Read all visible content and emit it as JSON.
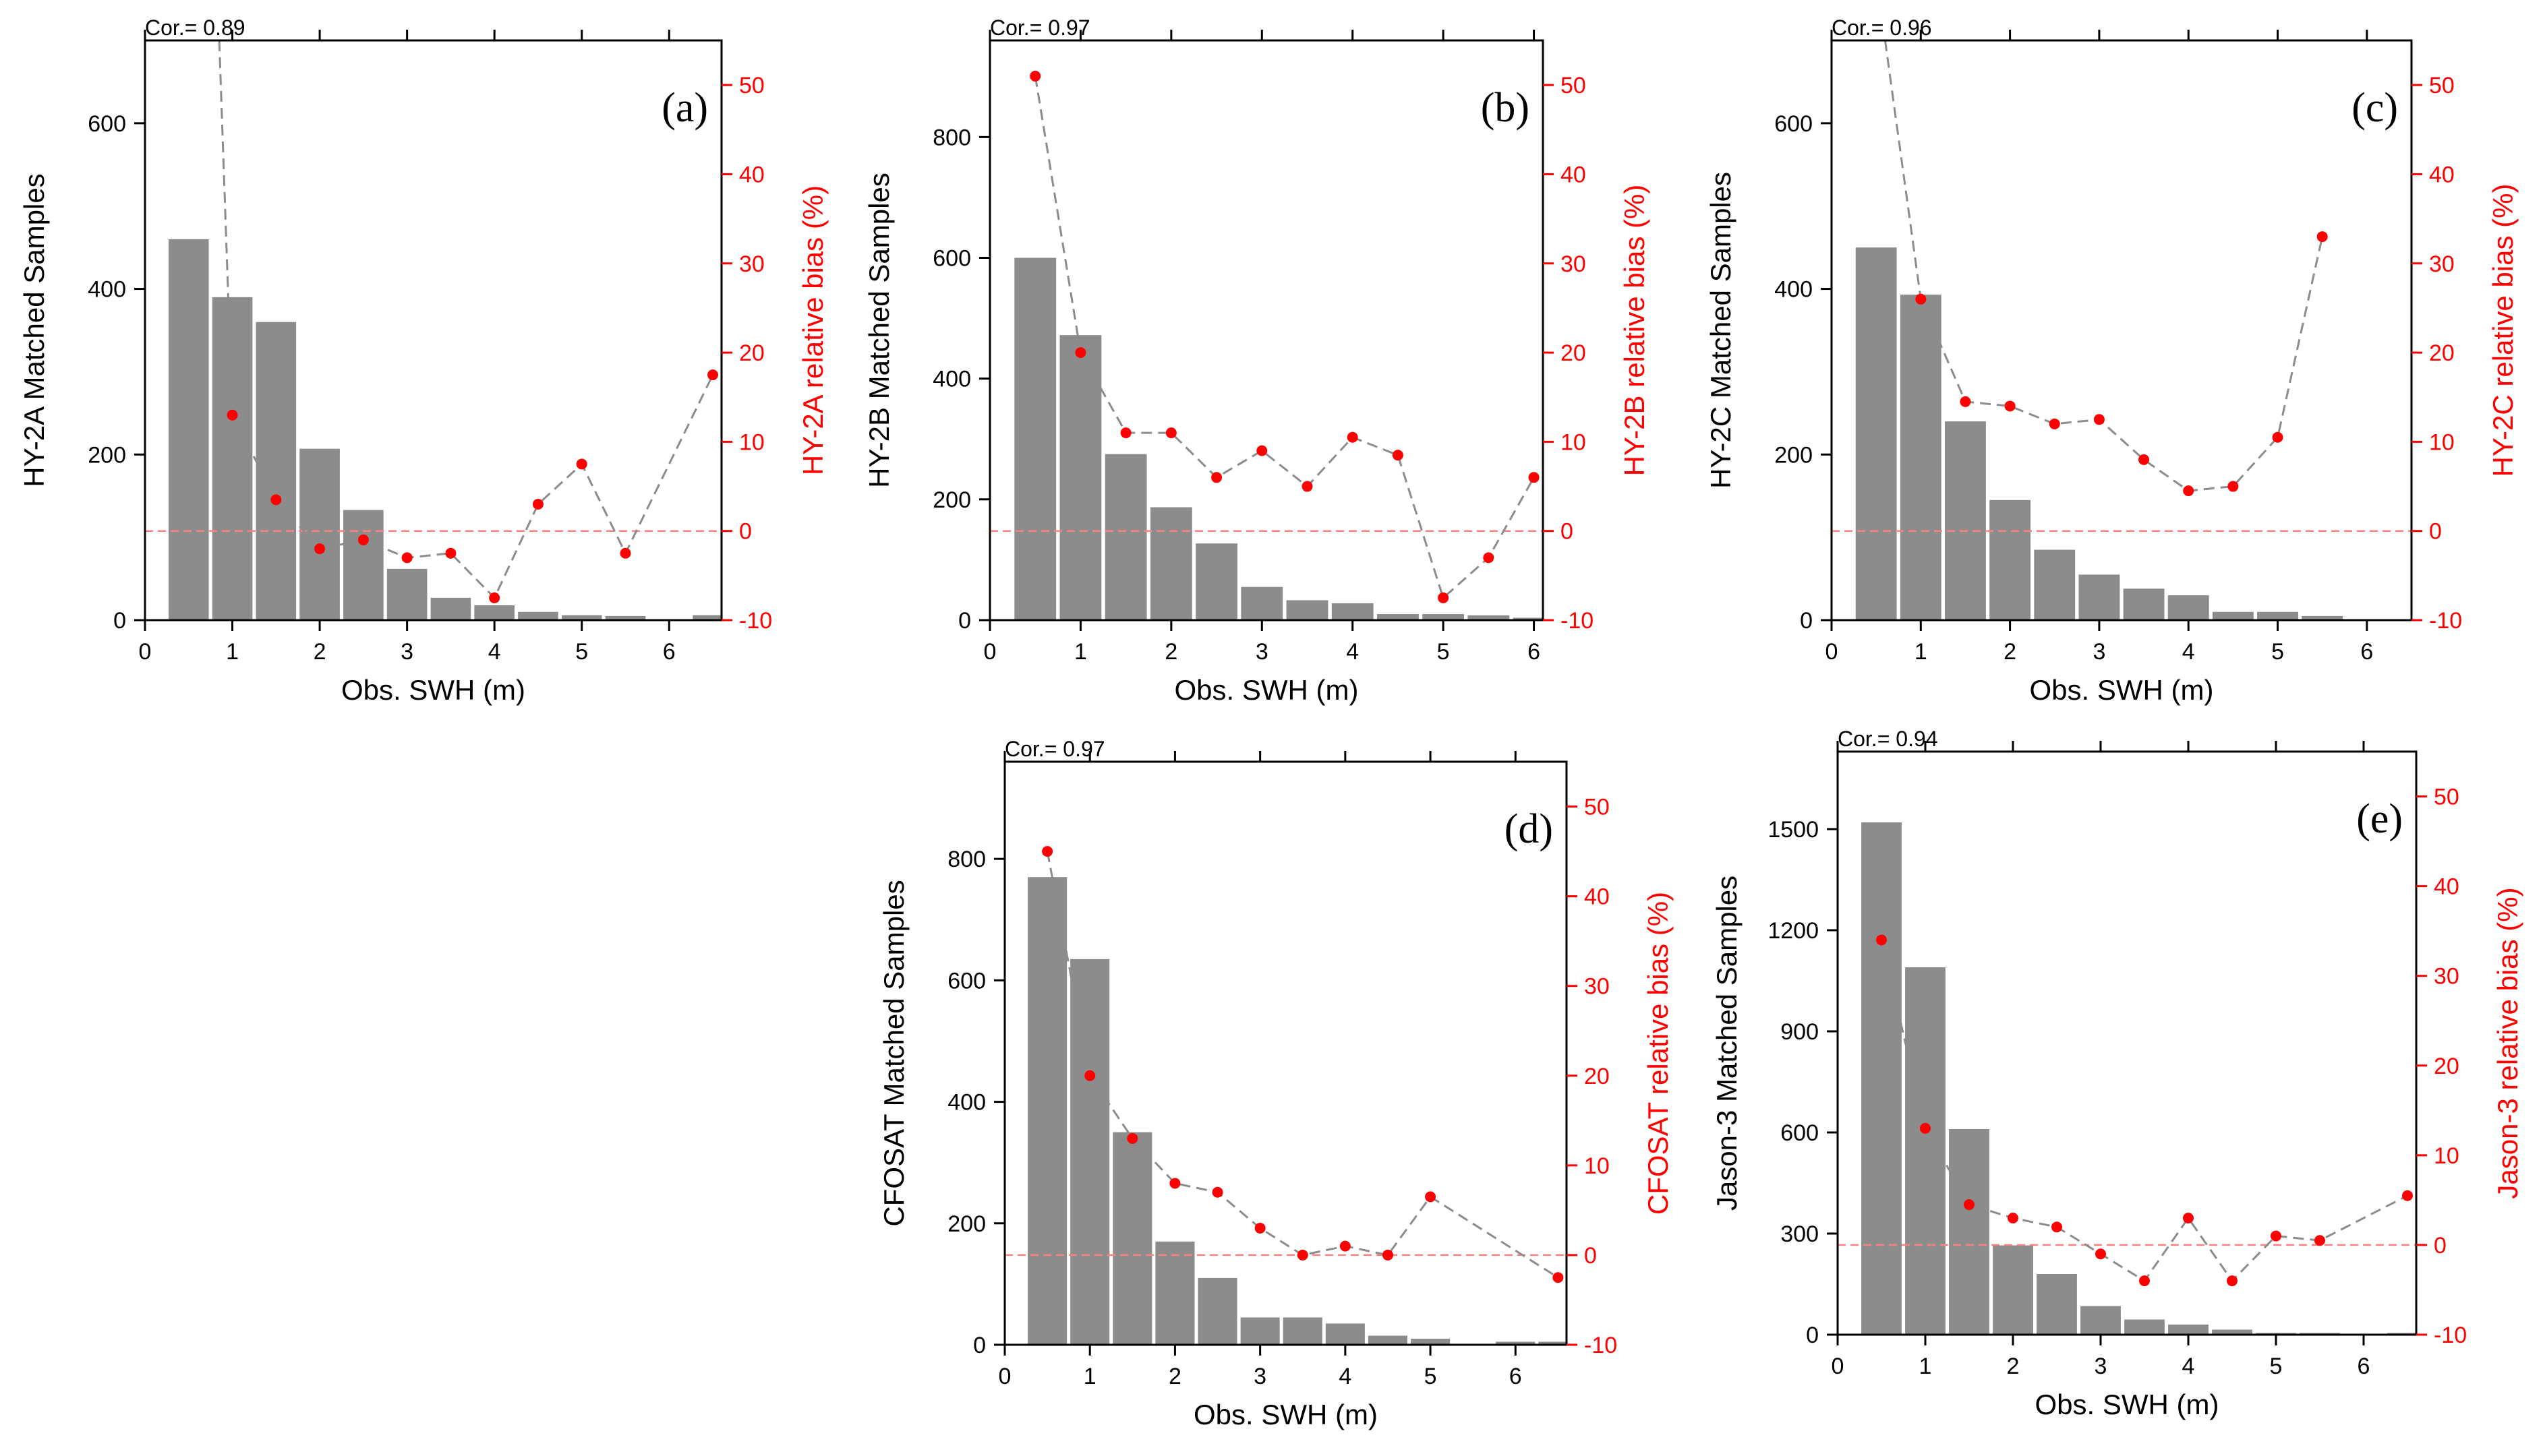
{
  "colors": {
    "bar": "#8c8c8c",
    "bias": "#ff0000",
    "bias_line": "#8c8c8c",
    "zero_line": "#ff8080",
    "axis": "#000000"
  },
  "chart_data": [
    {
      "id": "a",
      "type": "bar+line",
      "panel_label": "(a)",
      "correlation": "Cor.= 0.89",
      "xlabel": "Obs. SWH (m)",
      "ylabel": "HY-2A Matched Samples",
      "ylabel2": "HY-2A relative bias (%)",
      "xlim": [
        0,
        6.6
      ],
      "ylim": [
        0,
        700
      ],
      "y2lim": [
        -10,
        55
      ],
      "x_ticks": [
        "0",
        "1",
        "2",
        "3",
        "4",
        "5",
        "6"
      ],
      "y_ticks": [
        "0",
        "200",
        "400",
        "600"
      ],
      "y2_ticks": [
        "-10",
        "0",
        "10",
        "20",
        "30",
        "40",
        "50"
      ],
      "bin_centers": [
        0.5,
        1,
        1.5,
        2,
        2.5,
        3,
        3.5,
        4,
        4.5,
        5,
        5.5,
        6,
        6.5
      ],
      "counts": [
        460,
        390,
        360,
        207,
        133,
        62,
        27,
        18,
        10,
        6,
        5,
        0,
        6
      ],
      "bias": [
        null,
        13,
        3.5,
        -2,
        -1,
        -3,
        -2.5,
        -7.5,
        3,
        7.5,
        -2.5,
        null,
        17.5
      ],
      "bias_line_start": [
        0.85,
        55
      ]
    },
    {
      "id": "b",
      "type": "bar+line",
      "panel_label": "(b)",
      "correlation": "Cor.= 0.97",
      "xlabel": "Obs. SWH (m)",
      "ylabel": "HY-2B Matched Samples",
      "ylabel2": "HY-2B relative bias (%)",
      "xlim": [
        0,
        6.1
      ],
      "ylim": [
        0,
        960
      ],
      "y2lim": [
        -10,
        55
      ],
      "x_ticks": [
        "0",
        "1",
        "2",
        "3",
        "4",
        "5",
        "6"
      ],
      "y_ticks": [
        "0",
        "200",
        "400",
        "600",
        "800"
      ],
      "y2_ticks": [
        "-10",
        "0",
        "10",
        "20",
        "30",
        "40",
        "50"
      ],
      "bin_centers": [
        0.5,
        1,
        1.5,
        2,
        2.5,
        3,
        3.5,
        4,
        4.5,
        5,
        5.5,
        6
      ],
      "counts": [
        600,
        472,
        275,
        187,
        127,
        55,
        33,
        28,
        10,
        10,
        8,
        4
      ],
      "bias": [
        51,
        20,
        11,
        11,
        6,
        9,
        5,
        10.5,
        8.5,
        -7.5,
        -3,
        6
      ],
      "bias_line_start": null
    },
    {
      "id": "c",
      "type": "bar+line",
      "panel_label": "(c)",
      "correlation": "Cor.= 0.96",
      "xlabel": "Obs. SWH (m)",
      "ylabel": "HY-2C Matched Samples",
      "ylabel2": "HY-2C relative bias (%)",
      "xlim": [
        0,
        6.5
      ],
      "ylim": [
        0,
        700
      ],
      "y2lim": [
        -10,
        55
      ],
      "x_ticks": [
        "0",
        "1",
        "2",
        "3",
        "4",
        "5",
        "6"
      ],
      "y_ticks": [
        "0",
        "200",
        "400",
        "600"
      ],
      "y2_ticks": [
        "-10",
        "0",
        "10",
        "20",
        "30",
        "40",
        "50"
      ],
      "bin_centers": [
        0.5,
        1,
        1.5,
        2,
        2.5,
        3,
        3.5,
        4,
        4.5,
        5,
        5.5
      ],
      "counts": [
        450,
        393,
        240,
        145,
        85,
        55,
        38,
        30,
        10,
        10,
        5
      ],
      "bias": [
        null,
        26,
        14.5,
        14,
        12,
        12.5,
        8,
        4.5,
        5,
        10.5,
        33
      ],
      "bias_line_start": [
        0.6,
        55
      ]
    },
    {
      "id": "d",
      "type": "bar+line",
      "panel_label": "(d)",
      "correlation": "Cor.= 0.97",
      "xlabel": "Obs. SWH (m)",
      "ylabel": "CFOSAT Matched Samples",
      "ylabel2": "CFOSAT relative bias (%)",
      "xlim": [
        0,
        6.6
      ],
      "ylim": [
        0,
        960
      ],
      "y2lim": [
        -10,
        55
      ],
      "x_ticks": [
        "0",
        "1",
        "2",
        "3",
        "4",
        "5",
        "6"
      ],
      "y_ticks": [
        "0",
        "200",
        "400",
        "600",
        "800"
      ],
      "y2_ticks": [
        "-10",
        "0",
        "10",
        "20",
        "30",
        "40",
        "50"
      ],
      "bin_centers": [
        0.5,
        1,
        1.5,
        2,
        2.5,
        3,
        3.5,
        4,
        4.5,
        5,
        5.5,
        6,
        6.5
      ],
      "counts": [
        770,
        635,
        350,
        170,
        110,
        45,
        45,
        35,
        15,
        10,
        0,
        5,
        5
      ],
      "bias": [
        45,
        20,
        13,
        8,
        7,
        3,
        0,
        1,
        0,
        6.5,
        null,
        null,
        -2.5
      ],
      "bias_line_start": null
    },
    {
      "id": "e",
      "type": "bar+line",
      "panel_label": "(e)",
      "correlation": "Cor.= 0.94",
      "xlabel": "Obs. SWH (m)",
      "ylabel": "Jason-3 Matched Samples",
      "ylabel2": "Jason-3 relative bias (%)",
      "xlim": [
        0,
        6.6
      ],
      "ylim": [
        0,
        1730
      ],
      "y2lim": [
        -10,
        55
      ],
      "x_ticks": [
        "0",
        "1",
        "2",
        "3",
        "4",
        "5",
        "6"
      ],
      "y_ticks": [
        "0",
        "300",
        "600",
        "900",
        "1200",
        "1500"
      ],
      "y2_ticks": [
        "-10",
        "0",
        "10",
        "20",
        "30",
        "40",
        "50"
      ],
      "bin_centers": [
        0.5,
        1,
        1.5,
        2,
        2.5,
        3,
        3.5,
        4,
        4.5,
        5,
        5.5,
        6,
        6.5
      ],
      "counts": [
        1520,
        1090,
        610,
        265,
        180,
        85,
        45,
        30,
        15,
        5,
        5,
        0,
        5
      ],
      "bias": [
        34,
        13,
        4.5,
        3,
        2,
        -1,
        -4,
        3,
        -4,
        1,
        0.5,
        null,
        5.5
      ],
      "bias_line_start": null
    }
  ]
}
